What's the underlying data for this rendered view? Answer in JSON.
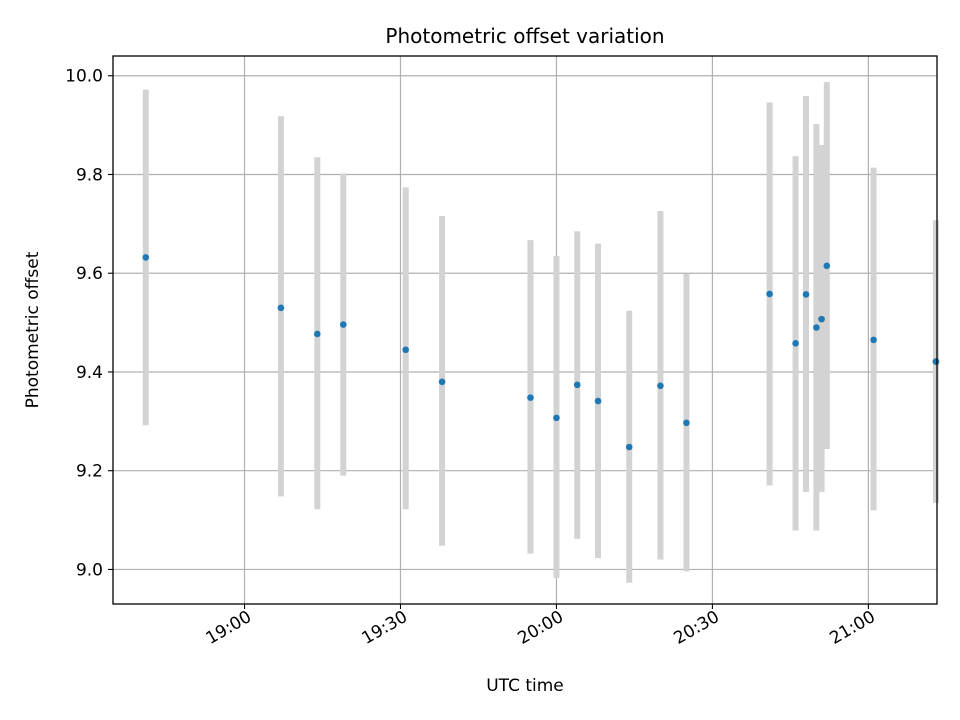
{
  "chart_data": {
    "type": "scatter",
    "title": "Photometric offset variation",
    "xlabel": "UTC time",
    "ylabel": "Photometric offset",
    "x_tick_labels": [
      "19:00",
      "19:30",
      "20:00",
      "20:30",
      "21:00"
    ],
    "x_tick_values_min": [
      1140,
      1170,
      1200,
      1230,
      1260
    ],
    "y_tick_labels": [
      "9.0",
      "9.2",
      "9.4",
      "9.6",
      "9.8",
      "10.0"
    ],
    "y_tick_values": [
      9.0,
      9.2,
      9.4,
      9.6,
      9.8,
      10.0
    ],
    "xlim_min": [
      1114.7,
      1273.2
    ],
    "ylim": [
      8.93,
      10.04
    ],
    "grid": true,
    "errorbar_color": "#d3d3d3",
    "marker_color": "#1f77b4",
    "points": [
      {
        "x": "18:41",
        "y": 9.632,
        "ylow": 9.292,
        "yhigh": 9.972
      },
      {
        "x": "19:07",
        "y": 9.53,
        "ylow": 9.148,
        "yhigh": 9.918
      },
      {
        "x": "19:14",
        "y": 9.477,
        "ylow": 9.122,
        "yhigh": 9.835
      },
      {
        "x": "19:19",
        "y": 9.496,
        "ylow": 9.19,
        "yhigh": 9.802
      },
      {
        "x": "19:31",
        "y": 9.445,
        "ylow": 9.122,
        "yhigh": 9.774
      },
      {
        "x": "19:38",
        "y": 9.38,
        "ylow": 9.048,
        "yhigh": 9.716
      },
      {
        "x": "19:55",
        "y": 9.348,
        "ylow": 9.032,
        "yhigh": 9.667
      },
      {
        "x": "20:00",
        "y": 9.307,
        "ylow": 8.983,
        "yhigh": 9.635
      },
      {
        "x": "20:04",
        "y": 9.374,
        "ylow": 9.062,
        "yhigh": 9.685
      },
      {
        "x": "20:08",
        "y": 9.341,
        "ylow": 9.023,
        "yhigh": 9.66
      },
      {
        "x": "20:14",
        "y": 9.248,
        "ylow": 8.973,
        "yhigh": 9.524
      },
      {
        "x": "20:20",
        "y": 9.372,
        "ylow": 9.02,
        "yhigh": 9.726
      },
      {
        "x": "20:25",
        "y": 9.297,
        "ylow": 8.996,
        "yhigh": 9.599
      },
      {
        "x": "20:41",
        "y": 9.558,
        "ylow": 9.17,
        "yhigh": 9.946
      },
      {
        "x": "20:46",
        "y": 9.458,
        "ylow": 9.079,
        "yhigh": 9.837
      },
      {
        "x": "20:48",
        "y": 9.557,
        "ylow": 9.157,
        "yhigh": 9.959
      },
      {
        "x": "20:50",
        "y": 9.49,
        "ylow": 9.079,
        "yhigh": 9.902
      },
      {
        "x": "20:51",
        "y": 9.507,
        "ylow": 9.157,
        "yhigh": 9.86
      },
      {
        "x": "20:52",
        "y": 9.615,
        "ylow": 9.244,
        "yhigh": 9.987
      },
      {
        "x": "21:01",
        "y": 9.465,
        "ylow": 9.12,
        "yhigh": 9.814
      },
      {
        "x": "21:13",
        "y": 9.421,
        "ylow": 9.135,
        "yhigh": 9.707
      },
      {
        "x": "21:13",
        "y": 9.421,
        "ylow": 9.135,
        "yhigh": 9.707
      }
    ]
  }
}
